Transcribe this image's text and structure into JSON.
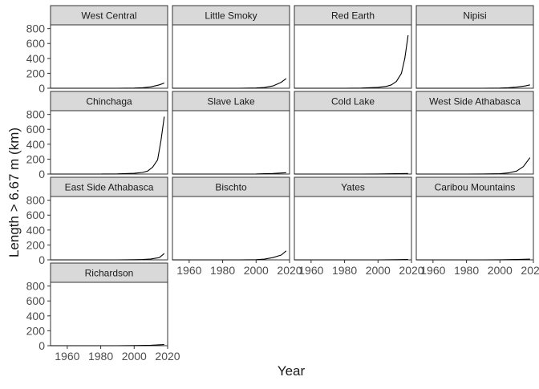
{
  "chart_data": {
    "type": "line",
    "layout": "faceted-small-multiples",
    "xlabel": "Year",
    "ylabel": "Length > 6.67 m (km)",
    "xlim": [
      1950,
      2020
    ],
    "ylim": [
      0,
      850
    ],
    "x_ticks": [
      1960,
      1980,
      2000,
      2020
    ],
    "y_ticks": [
      0,
      200,
      400,
      600,
      800
    ],
    "x_tick_labels": [
      "1960",
      "1980",
      "2000",
      "2020"
    ],
    "y_tick_labels": [
      "0",
      "200",
      "400",
      "600",
      "800"
    ],
    "grid": false,
    "legend": "none",
    "colors": {
      "line": "#000000",
      "strip_fill": "#d9d9d9",
      "panel_border": "#333333",
      "text": "#1a1a1a",
      "tick_text": "#4d4d4d"
    },
    "panels": [
      {
        "name": "West Central",
        "x": [
          1950,
          1960,
          1970,
          1980,
          1990,
          2000,
          2005,
          2010,
          2015,
          2018
        ],
        "y": [
          0,
          0,
          0,
          0,
          0,
          2,
          6,
          18,
          45,
          70
        ]
      },
      {
        "name": "Little Smoky",
        "x": [
          1950,
          1960,
          1970,
          1980,
          1990,
          2000,
          2005,
          2010,
          2015,
          2018
        ],
        "y": [
          0,
          0,
          0,
          0,
          0,
          3,
          10,
          30,
          80,
          130
        ]
      },
      {
        "name": "Red Earth",
        "x": [
          1950,
          1960,
          1970,
          1980,
          1990,
          2000,
          2005,
          2008,
          2011,
          2014,
          2016,
          2018
        ],
        "y": [
          0,
          0,
          0,
          0,
          2,
          12,
          25,
          45,
          90,
          200,
          400,
          710
        ]
      },
      {
        "name": "Nipisi",
        "x": [
          1950,
          1960,
          1970,
          1980,
          1990,
          2000,
          2005,
          2010,
          2015,
          2018
        ],
        "y": [
          0,
          0,
          0,
          0,
          0,
          2,
          6,
          15,
          30,
          45
        ]
      },
      {
        "name": "Chinchaga",
        "x": [
          1950,
          1960,
          1970,
          1980,
          1990,
          2000,
          2005,
          2008,
          2011,
          2014,
          2016,
          2018
        ],
        "y": [
          0,
          0,
          0,
          0,
          2,
          10,
          22,
          40,
          90,
          190,
          450,
          770
        ]
      },
      {
        "name": "Slave Lake",
        "x": [
          1950,
          1960,
          1970,
          1980,
          1990,
          2000,
          2005,
          2010,
          2015,
          2018
        ],
        "y": [
          0,
          0,
          0,
          0,
          0,
          1,
          4,
          8,
          14,
          18
        ]
      },
      {
        "name": "Cold Lake",
        "x": [
          1950,
          1960,
          1970,
          1980,
          1990,
          2000,
          2010,
          2018
        ],
        "y": [
          0,
          0,
          0,
          0,
          0,
          1,
          4,
          8
        ]
      },
      {
        "name": "West Side Athabasca",
        "x": [
          1950,
          1960,
          1970,
          1980,
          1990,
          2000,
          2005,
          2010,
          2014,
          2018
        ],
        "y": [
          0,
          0,
          0,
          0,
          1,
          5,
          15,
          40,
          100,
          220
        ]
      },
      {
        "name": "East Side Athabasca",
        "x": [
          1950,
          1960,
          1970,
          1980,
          1990,
          2000,
          2005,
          2010,
          2015,
          2018
        ],
        "y": [
          0,
          0,
          0,
          0,
          0,
          2,
          5,
          12,
          30,
          85
        ]
      },
      {
        "name": "Bischto",
        "x": [
          1950,
          1960,
          1970,
          1980,
          1990,
          2000,
          2005,
          2010,
          2015,
          2018
        ],
        "y": [
          0,
          0,
          0,
          0,
          0,
          2,
          10,
          30,
          65,
          120
        ]
      },
      {
        "name": "Yates",
        "x": [
          1950,
          1960,
          1970,
          1980,
          1990,
          2000,
          2010,
          2018
        ],
        "y": [
          0,
          0,
          0,
          0,
          0,
          0,
          2,
          5
        ]
      },
      {
        "name": "Caribou Mountains",
        "x": [
          1950,
          1960,
          1970,
          1980,
          1990,
          2000,
          2010,
          2018
        ],
        "y": [
          0,
          0,
          0,
          0,
          0,
          1,
          4,
          10
        ]
      },
      {
        "name": "Richardson",
        "x": [
          1950,
          1960,
          1970,
          1980,
          1990,
          2000,
          2010,
          2018
        ],
        "y": [
          0,
          0,
          0,
          0,
          0,
          2,
          6,
          15
        ]
      }
    ]
  }
}
